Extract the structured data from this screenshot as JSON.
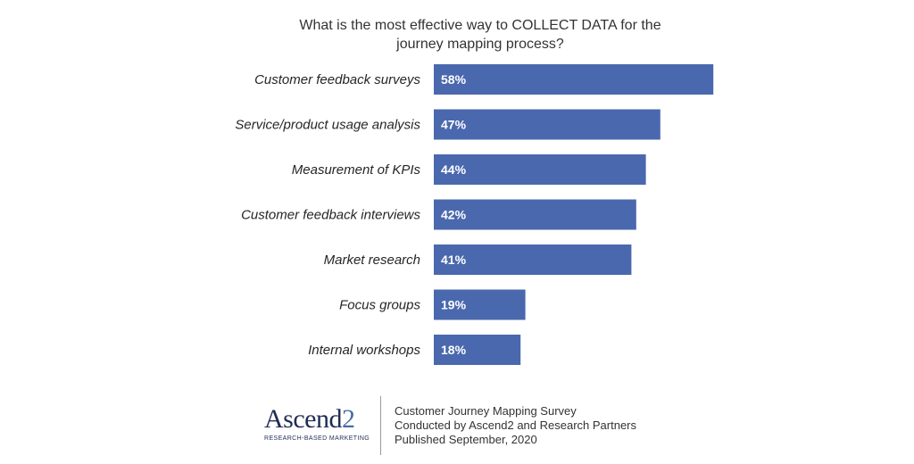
{
  "chart_data": {
    "type": "bar",
    "orientation": "horizontal",
    "title": "What is the most effective way to COLLECT DATA for the journey mapping process?",
    "title_lines": [
      "What is the most effective way to COLLECT DATA for the",
      "journey mapping process?"
    ],
    "categories": [
      "Customer feedback surveys",
      "Service/product usage analysis",
      "Measurement of KPIs",
      "Customer feedback interviews",
      "Market research",
      "Focus groups",
      "Internal workshops"
    ],
    "values": [
      58,
      47,
      44,
      42,
      41,
      19,
      18
    ],
    "value_labels": [
      "58%",
      "47%",
      "44%",
      "42%",
      "41%",
      "19%",
      "18%"
    ],
    "xlim": [
      0,
      100
    ],
    "grid": false,
    "bar_color": "#4a68ad"
  },
  "footer": {
    "logo_word": "Ascend",
    "logo_digit": "2",
    "logo_tagline": "RESEARCH-BASED MARKETING",
    "source_lines": [
      "Customer Journey Mapping Survey",
      "Conducted by Ascend2 and Research Partners",
      "Published September, 2020"
    ]
  }
}
